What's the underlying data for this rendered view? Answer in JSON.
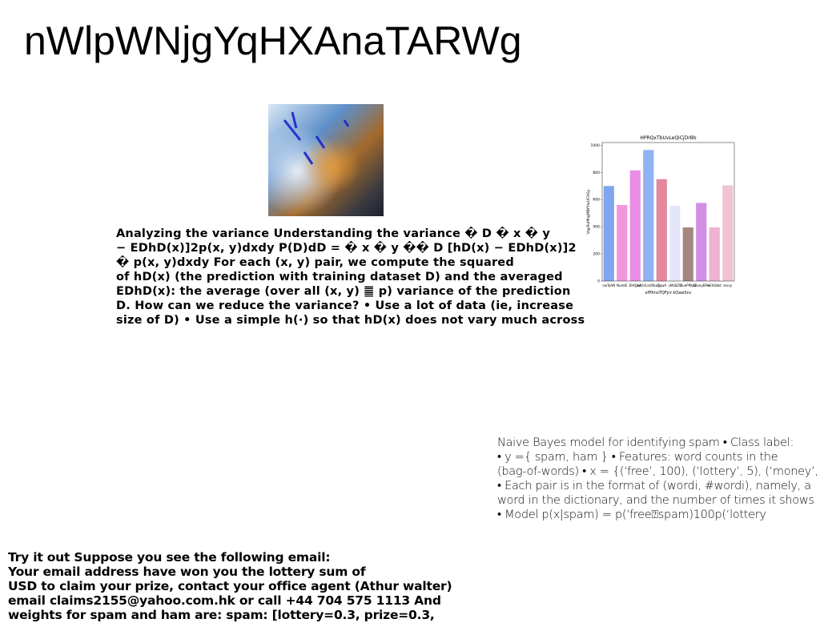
{
  "title": "nWlpWNjgYqHXAnaTARWg",
  "block1": [
    "Analyzing the variance Understanding the variance � D � x � y",
    "− EDhD(x)]2p(x, y)dxdy P(D)dD = � x � y �� D [hD(x) − EDhD(x)]2",
    "� p(x, y)dxdy For each (x, y) pair, we compute the squared",
    "of hD(x) (the prediction with training dataset D) and the averaged",
    "EDhD(x): the average (over all (x, y) ䷀ p) variance of the prediction",
    "D. How can we reduce the variance? • Use a lot of data (ie, increase",
    "size of D) • Use a simple h(·) so that hD(x) does not vary much across"
  ],
  "block2": [
    "Naive Bayes model for identifying spam • Class label:",
    "• y ={ spam, ham } • Features: word counts in the",
    "(bag-of-words) • x = {(‘free’, 100), (‘lottery’, 5), (‘money’,",
    "• Each pair is in the format of (wordi, #wordi), namely, a",
    "word in the dictionary, and the number of times it shows",
    "• Model p(x|spam) = p(‘free⍰spam)100p(‘lottery"
  ],
  "block3": [
    "Try it out Suppose you see the following email:",
    "Your email address have won you the lottery sum of",
    "USD to claim your prize, contact your office agent (Athur walter)",
    "email claims2155@yahoo.com.hk or call +44 704 575 1113 And",
    "weights for spam and ham are: spam: [lottery=0.3, prize=0.3,"
  ],
  "chart_data": {
    "type": "bar",
    "title": "HPRQxTbUvLeQiCjDrBb",
    "x_label": "ofPKnoTQFjrz kOawSnc",
    "y_label": "VqyRuMhgMBYYwUCVGy",
    "categories": [
      "nwToAN",
      "NumtE",
      "EHQJbA",
      "xcUVLxURbug",
      "lTqwA",
      "uMsBZlz",
      "BuePMUG",
      "uBveyEMe",
      "nEHUbkt",
      "levvy"
    ],
    "values": [
      700,
      560,
      815,
      965,
      750,
      555,
      395,
      575,
      395,
      705
    ],
    "colors": [
      "#7fa6ee",
      "#f394dc",
      "#e98de6",
      "#8fb2f2",
      "#e3879d",
      "#e3e6fb",
      "#a6877f",
      "#d38fe5",
      "#edb3cf",
      "#efc3d3"
    ],
    "ylim": [
      0,
      1020
    ],
    "yticks": [
      0,
      200,
      400,
      600,
      800,
      1000
    ]
  }
}
